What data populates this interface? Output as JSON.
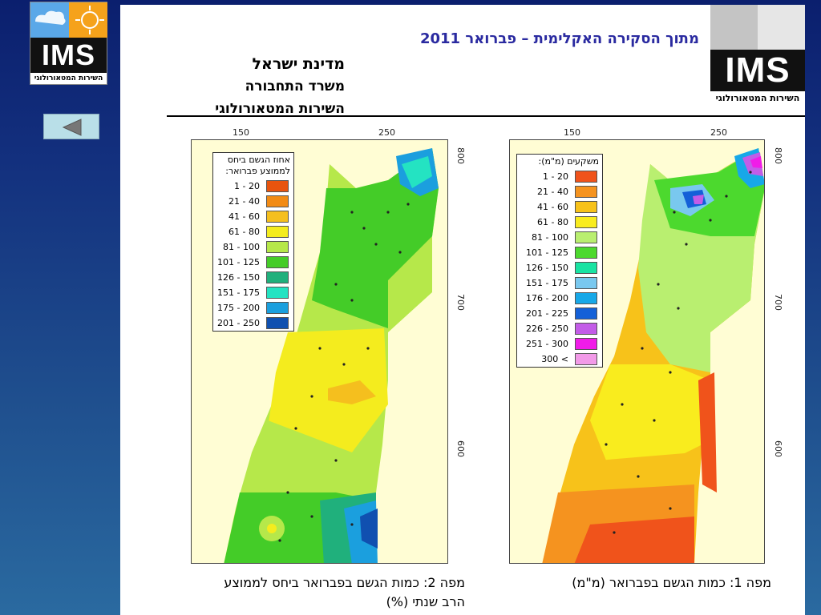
{
  "header": {
    "excerpt_title": "מתוך הסקירה האקלימית – פברואר 2011",
    "org_line1": "מדינת ישראל",
    "org_line2": "משרד התחבורה",
    "org_line3": "השירות המטאורולוגי"
  },
  "logos": {
    "left": {
      "abbr": "IMS",
      "subtitle": "השירות המטאורולוגי",
      "accent_blue": "#5aa8e8",
      "accent_orange": "#f5a21b"
    },
    "right": {
      "abbr": "IMS",
      "subtitle": "השירות המטאורולוגי"
    }
  },
  "navigation": {
    "back_icon": "triangle-left-icon"
  },
  "axes": {
    "x_ticks": [
      "150",
      "250"
    ],
    "y_ticks": [
      "800",
      "700",
      "600"
    ]
  },
  "map1": {
    "caption": "מפה 1: כמות הגשם בפברואר (מ\"מ)",
    "legend_title": "משקעים (מ\"מ):",
    "legend": [
      {
        "label": "1 - 20",
        "color": "#f0531b"
      },
      {
        "label": "21 - 40",
        "color": "#f5931f"
      },
      {
        "label": "41 - 60",
        "color": "#f7c21a"
      },
      {
        "label": "61 - 80",
        "color": "#f9ec1e"
      },
      {
        "label": "81 - 100",
        "color": "#b9ef70"
      },
      {
        "label": "101 - 125",
        "color": "#4cd92e"
      },
      {
        "label": "126 - 150",
        "color": "#19e3a2"
      },
      {
        "label": "151 - 175",
        "color": "#79c8ef"
      },
      {
        "label": "176 - 200",
        "color": "#17a8e8"
      },
      {
        "label": "201 - 225",
        "color": "#1460d8"
      },
      {
        "label": "226 - 250",
        "color": "#c35ce8"
      },
      {
        "label": "251 - 300",
        "color": "#f01ce8"
      },
      {
        "label": "300 <",
        "color": "#f29ae8"
      }
    ]
  },
  "map2": {
    "caption_line1": "מפה 2: כמות הגשם בפברואר ביחס לממוצע",
    "caption_line2": "הרב שנתי (%)",
    "legend_title_line1": "אחוז הגשם ביחס",
    "legend_title_line2": "לממוצע פברואר:",
    "legend": [
      {
        "label": "1 - 20",
        "color": "#e8540e"
      },
      {
        "label": "21 - 40",
        "color": "#f28b14"
      },
      {
        "label": "41 - 60",
        "color": "#f5bf1e"
      },
      {
        "label": "61 - 80",
        "color": "#f4ec1e"
      },
      {
        "label": "81 - 100",
        "color": "#b6e84a"
      },
      {
        "label": "101 - 125",
        "color": "#44cc28"
      },
      {
        "label": "126 - 150",
        "color": "#20b07c"
      },
      {
        "label": "151 - 175",
        "color": "#24e3c2"
      },
      {
        "label": "175 - 200",
        "color": "#1b9fde"
      },
      {
        "label": "201 - 250",
        "color": "#1050b0"
      }
    ]
  }
}
